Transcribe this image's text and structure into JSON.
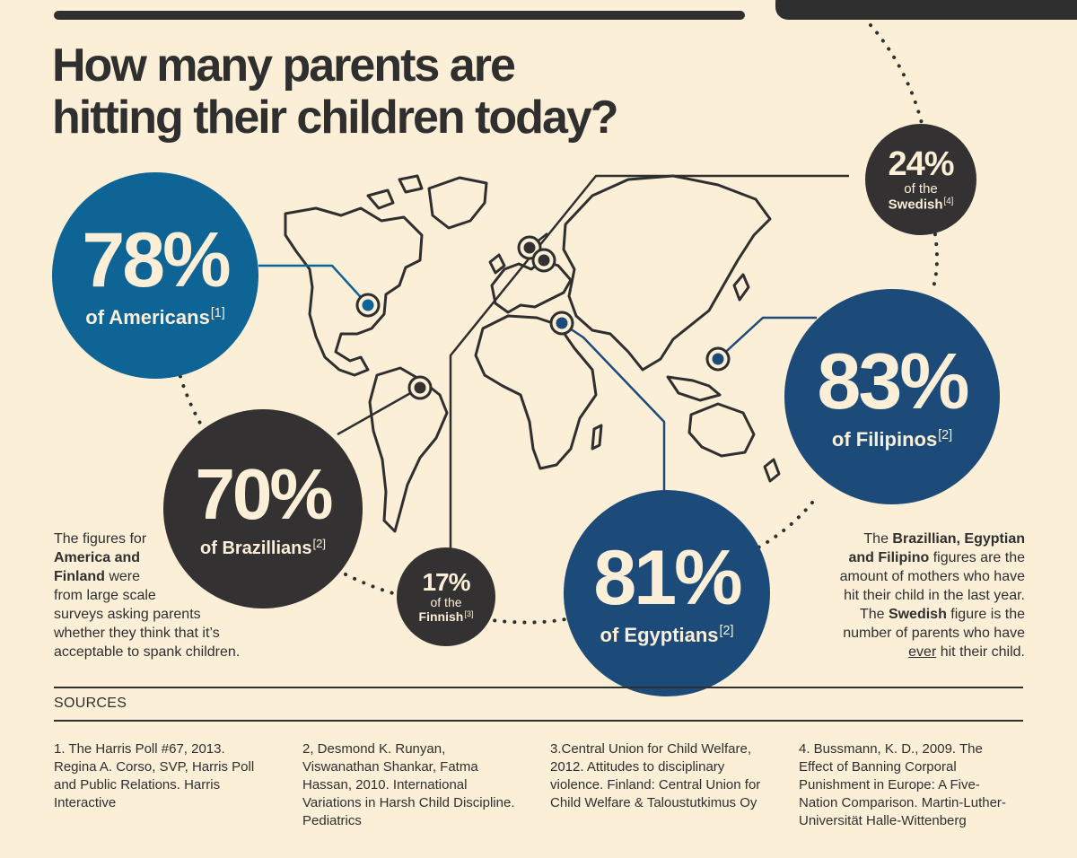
{
  "title": {
    "line1": "How many parents are",
    "line2": "hitting their children today?"
  },
  "stats": {
    "americans": {
      "percent": "78%",
      "label": "of Americans",
      "ref": "[1]",
      "value": 78,
      "color": "#0f6496"
    },
    "brazillians": {
      "percent": "70%",
      "label": "of Brazillians",
      "ref": "[2]",
      "value": 70,
      "color": "#333131"
    },
    "finnish": {
      "percent": "17%",
      "label_top": "of the",
      "label": "Finnish",
      "ref": "[3]",
      "value": 17,
      "color": "#333131"
    },
    "egyptians": {
      "percent": "81%",
      "label": "of Egyptians",
      "ref": "[2]",
      "value": 81,
      "color": "#1d4b79"
    },
    "filipinos": {
      "percent": "83%",
      "label": "of Filipinos",
      "ref": "[2]",
      "value": 83,
      "color": "#1d4b79"
    },
    "swedish": {
      "percent": "24%",
      "label_top": "of the",
      "label": "Swedish",
      "ref": "[4]",
      "value": 24,
      "color": "#333131"
    }
  },
  "left_note": {
    "p1": "The figures for",
    "b1": "America and",
    "b2": "Finland",
    "p2": " were",
    "p3": "from large scale",
    "p4": "surveys asking parents",
    "p5": "whether they think that it’s",
    "p6": "acceptable to spank children."
  },
  "right_note": {
    "p1": "The ",
    "b1": "Brazillian, Egyptian",
    "b2": "and Filipino",
    "p2": " figures are the",
    "p3": "amount of mothers who have",
    "p4": "hit their child in the last year.",
    "p5": "The ",
    "b3": "Swedish",
    "p6": " figure is the",
    "p7": "number of parents who have",
    "u1": "ever",
    "p8": " hit their child."
  },
  "sources": {
    "heading": "SOURCES",
    "items": [
      "1. The Harris Poll #67, 2013. Regina A. Corso, SVP, Harris Poll and Public Relations. Harris Interactive",
      "2, Desmond K. Runyan, Viswanathan Shankar, Fatma Hassan, 2010. International Variations in Harsh Child Discipline. Pediatrics",
      "3.Central Union for Child Welfare, 2012. Attitudes to disciplinary violence. Finland: Central Union for Child Welfare & Taloustutkimus Oy",
      "4. Bussmann, K. D., 2009. The Effect of Banning Corporal Punishment in Europe: A Five-Nation Comparison. Martin-Luther-Universität Halle-Wittenberg"
    ]
  },
  "colors": {
    "background": "#fbefd8",
    "ink": "#2f2f2f",
    "blue_light": "#0f6496",
    "blue_dark": "#1d4b79",
    "charcoal": "#333131"
  }
}
